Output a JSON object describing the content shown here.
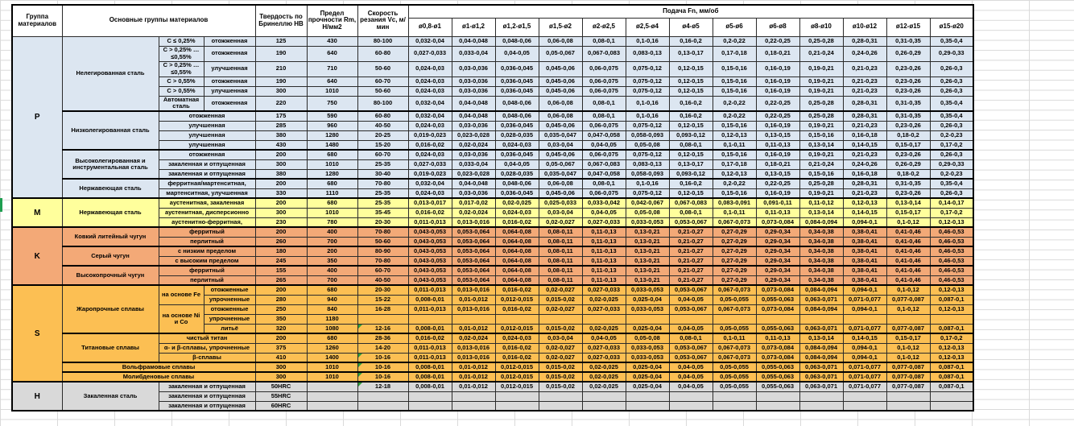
{
  "colors": {
    "group_p": "#dce6f1",
    "group_m": "#ffff9c",
    "group_k": "#f3a977",
    "group_s": "#fcbf53",
    "group_h": "#d9d9d9",
    "comment_marker": "#2e9e3a",
    "grid_line": "#dadada"
  },
  "header": {
    "top": [
      {
        "t": "Группа материалов",
        "rs": 2,
        "n": "header-material-group"
      },
      {
        "t": "Основные группы материалов",
        "rs": 2,
        "cs": 3,
        "n": "header-main-groups"
      },
      {
        "t": "Твердость по Бринеллю HB",
        "rs": 2,
        "n": "header-hardness"
      },
      {
        "t": "Предел прочности Rm, Н/мм2",
        "rs": 2,
        "n": "header-strength"
      },
      {
        "t": "Скорость резания Vc, м/мин",
        "rs": 2,
        "n": "header-cutting-speed"
      },
      {
        "t": "Подача Fn, мм/об",
        "cs": 13,
        "n": "header-feed"
      }
    ],
    "feed_cols": [
      "ø0,8-ø1",
      "ø1-ø1,2",
      "ø1,2-ø1,5",
      "ø1,5-ø2",
      "ø2-ø2,5",
      "ø2,5-ø4",
      "ø4-ø5",
      "ø5-ø6",
      "ø6-ø8",
      "ø8-ø10",
      "ø10-ø12",
      "ø12-ø15",
      "ø15-ø20"
    ]
  },
  "feed_patterns": {
    "A": [
      "0,032-0,04",
      "0,04-0,048",
      "0,048-0,06",
      "0,06-0,08",
      "0,08-0,1",
      "0,1-0,16",
      "0,16-0,2",
      "0,2-0,22",
      "0,22-0,25",
      "0,25-0,28",
      "0,28-0,31",
      "0,31-0,35",
      "0,35-0,4"
    ],
    "B": [
      "0,027-0,033",
      "0,033-0,04",
      "0,04-0,05",
      "0,05-0,067",
      "0,067-0,083",
      "0,083-0,13",
      "0,13-0,17",
      "0,17-0,18",
      "0,18-0,21",
      "0,21-0,24",
      "0,24-0,26",
      "0,26-0,29",
      "0,29-0,33"
    ],
    "C": [
      "0,024-0,03",
      "0,03-0,036",
      "0,036-0,045",
      "0,045-0,06",
      "0,06-0,075",
      "0,075-0,12",
      "0,12-0,15",
      "0,15-0,16",
      "0,16-0,19",
      "0,19-0,21",
      "0,21-0,23",
      "0,23-0,26",
      "0,26-0,3"
    ],
    "D": [
      "0,019-0,023",
      "0,023-0,028",
      "0,028-0,035",
      "0,035-0,047",
      "0,047-0,058",
      "0,058-0,093",
      "0,093-0,12",
      "0,12-0,13",
      "0,13-0,15",
      "0,15-0,16",
      "0,16-0,18",
      "0,18-0,2",
      "0,2-0,23"
    ],
    "E": [
      "0,016-0,02",
      "0,02-0,024",
      "0,024-0,03",
      "0,03-0,04",
      "0,04-0,05",
      "0,05-0,08",
      "0,08-0,1",
      "0,1-0,11",
      "0,11-0,13",
      "0,13-0,14",
      "0,14-0,15",
      "0,15-0,17",
      "0,17-0,2"
    ],
    "F": [
      "0,013-0,017",
      "0,017-0,02",
      "0,02-0,025",
      "0,025-0,033",
      "0,033-0,042",
      "0,042-0,067",
      "0,067-0,083",
      "0,083-0,091",
      "0,091-0,11",
      "0,11-0,12",
      "0,12-0,13",
      "0,13-0,14",
      "0,14-0,17"
    ],
    "G": [
      "0,011-0,013",
      "0,013-0,016",
      "0,016-0,02",
      "0,02-0,027",
      "0,027-0,033",
      "0,033-0,053",
      "0,053-0,067",
      "0,067-0,073",
      "0,073-0,084",
      "0,084-0,094",
      "0,094-0,1",
      "0,1-0,12",
      "0,12-0,13"
    ],
    "H": [
      "0,043-0,053",
      "0,053-0,064",
      "0,064-0,08",
      "0,08-0,11",
      "0,11-0,13",
      "0,13-0,21",
      "0,21-0,27",
      "0,27-0,29",
      "0,29-0,34",
      "0,34-0,38",
      "0,38-0,41",
      "0,41-0,46",
      "0,46-0,53"
    ],
    "I": [
      "0,008-0,01",
      "0,01-0,012",
      "0,012-0,015",
      "0,015-0,02",
      "0,02-0,025",
      "0,025-0,04",
      "0,04-0,05",
      "0,05-0,055",
      "0,055-0,063",
      "0,063-0,071",
      "0,071-0,077",
      "0,077-0,087",
      "0,087-0,1"
    ],
    "X": [
      "",
      "",
      "",
      "",
      "",
      "",
      "",
      "",
      "",
      "",
      "",
      "",
      ""
    ]
  },
  "rows": [
    {
      "bg": "p",
      "cells": [
        {
          "t": "P",
          "rs": 15,
          "c": "gl"
        },
        {
          "t": "Нелегированная сталь",
          "rs": 6
        },
        {
          "t": "C ≤ 0,25%"
        },
        {
          "t": "отожженная"
        },
        {
          "t": "125"
        },
        {
          "t": "430"
        },
        {
          "t": "80-100"
        }
      ],
      "fp": "A"
    },
    {
      "bg": "p",
      "cls": "t19",
      "cells": [
        {
          "t": "C > 0,25% … ≤0,55%"
        },
        {
          "t": "отожженная"
        },
        {
          "t": "190"
        },
        {
          "t": "640"
        },
        {
          "t": "60-80"
        }
      ],
      "fp": "B"
    },
    {
      "bg": "p",
      "cls": "t19",
      "cells": [
        {
          "t": "C > 0,25% … ≤0,55%"
        },
        {
          "t": "улучшенная"
        },
        {
          "t": "210"
        },
        {
          "t": "710"
        },
        {
          "t": "50-60"
        }
      ],
      "fp": "C"
    },
    {
      "bg": "p",
      "cells": [
        {
          "t": "C > 0,55%"
        },
        {
          "t": "отожженная"
        },
        {
          "t": "190"
        },
        {
          "t": "640"
        },
        {
          "t": "60-70"
        }
      ],
      "fp": "C"
    },
    {
      "bg": "p",
      "cells": [
        {
          "t": "C > 0,55%"
        },
        {
          "t": "улучшенная"
        },
        {
          "t": "300"
        },
        {
          "t": "1010"
        },
        {
          "t": "50-60"
        }
      ],
      "fp": "C"
    },
    {
      "bg": "p",
      "cls": "t19",
      "cells": [
        {
          "t": "Автоматная сталь"
        },
        {
          "t": "отожженная"
        },
        {
          "t": "220"
        },
        {
          "t": "750"
        },
        {
          "t": "80-100"
        }
      ],
      "fp": "A"
    },
    {
      "bg": "p",
      "cls": "gtop",
      "cells": [
        {
          "t": "Низколегированная сталь",
          "rs": 4
        },
        {
          "t": "отожженная",
          "cs": 2
        },
        {
          "t": "175"
        },
        {
          "t": "590"
        },
        {
          "t": "60-80"
        }
      ],
      "fp": "A"
    },
    {
      "bg": "p",
      "cells": [
        {
          "t": "улучшенная",
          "cs": 2
        },
        {
          "t": "285"
        },
        {
          "t": "960"
        },
        {
          "t": "40-50"
        }
      ],
      "fp": "C"
    },
    {
      "bg": "p",
      "cells": [
        {
          "t": "улучшенная",
          "cs": 2
        },
        {
          "t": "380"
        },
        {
          "t": "1280"
        },
        {
          "t": "20-25"
        }
      ],
      "fp": "D"
    },
    {
      "bg": "p",
      "cells": [
        {
          "t": "улучшенная",
          "cs": 2
        },
        {
          "t": "430"
        },
        {
          "t": "1480"
        },
        {
          "t": "15-20"
        }
      ],
      "fp": "E"
    },
    {
      "bg": "p",
      "cls": "gtop",
      "cells": [
        {
          "t": "Высоколегированная и инструментальная сталь",
          "rs": 3
        },
        {
          "t": "отожженная",
          "cs": 2
        },
        {
          "t": "200"
        },
        {
          "t": "680"
        },
        {
          "t": "60-70"
        }
      ],
      "fp": "C"
    },
    {
      "bg": "p",
      "cells": [
        {
          "t": "закаленная и отпущенная",
          "cs": 2
        },
        {
          "t": "300"
        },
        {
          "t": "1010"
        },
        {
          "t": "25-35"
        }
      ],
      "fp": "B"
    },
    {
      "bg": "p",
      "cells": [
        {
          "t": "закаленная и отпущенная",
          "cs": 2
        },
        {
          "t": "380"
        },
        {
          "t": "1280"
        },
        {
          "t": "30-40"
        }
      ],
      "fp": "D"
    },
    {
      "bg": "p",
      "cls": "gtop",
      "cells": [
        {
          "t": "Нержавеющая сталь",
          "rs": 2
        },
        {
          "t": "ферритная/мартенситная,",
          "cs": 2
        },
        {
          "t": "200"
        },
        {
          "t": "680"
        },
        {
          "t": "70-80"
        }
      ],
      "fp": "A"
    },
    {
      "bg": "p",
      "cells": [
        {
          "t": "мартенситная, улучшенная",
          "cs": 2
        },
        {
          "t": "330"
        },
        {
          "t": "1110"
        },
        {
          "t": "25-35"
        }
      ],
      "fp": "C"
    },
    {
      "bg": "m",
      "cls": "gtop",
      "cells": [
        {
          "t": "M",
          "rs": 3,
          "c": "gl"
        },
        {
          "t": "Нержавеющая сталь",
          "rs": 3
        },
        {
          "t": "аустенитная, закаленная",
          "cs": 2
        },
        {
          "t": "200"
        },
        {
          "t": "680"
        },
        {
          "t": "25-35"
        }
      ],
      "fp": "F"
    },
    {
      "bg": "m",
      "cells": [
        {
          "t": "аустенитная, дисперсионно",
          "cs": 2
        },
        {
          "t": "300"
        },
        {
          "t": "1010"
        },
        {
          "t": "35-45"
        }
      ],
      "fp": "E"
    },
    {
      "bg": "m",
      "cells": [
        {
          "t": "аустенитно-ферритная,",
          "cs": 2
        },
        {
          "t": "230"
        },
        {
          "t": "780"
        },
        {
          "t": "20-30"
        }
      ],
      "fp": "G"
    },
    {
      "bg": "k",
      "cls": "gtop",
      "cells": [
        {
          "t": "K",
          "rs": 6,
          "c": "gl"
        },
        {
          "t": "Ковкий литейный чугун",
          "rs": 2
        },
        {
          "t": "ферритный",
          "cs": 2
        },
        {
          "t": "200"
        },
        {
          "t": "400"
        },
        {
          "t": "70-80"
        }
      ],
      "fp": "H"
    },
    {
      "bg": "k",
      "cells": [
        {
          "t": "перлитный",
          "cs": 2
        },
        {
          "t": "260"
        },
        {
          "t": "700"
        },
        {
          "t": "50-60"
        }
      ],
      "fp": "H"
    },
    {
      "bg": "k",
      "cls": "gtop",
      "cells": [
        {
          "t": "Серый чугун",
          "rs": 2
        },
        {
          "t": "с низким пределом",
          "cs": 2
        },
        {
          "t": "180"
        },
        {
          "t": "200"
        },
        {
          "t": "80-90"
        }
      ],
      "fp": "H"
    },
    {
      "bg": "k",
      "cells": [
        {
          "t": "с высоким пределом",
          "cs": 2
        },
        {
          "t": "245"
        },
        {
          "t": "350"
        },
        {
          "t": "70-80"
        }
      ],
      "fp": "H"
    },
    {
      "bg": "k",
      "cls": "gtop",
      "cells": [
        {
          "t": "Высокопрочный чугун",
          "rs": 2
        },
        {
          "t": "ферритный",
          "cs": 2
        },
        {
          "t": "155"
        },
        {
          "t": "400"
        },
        {
          "t": "60-70"
        }
      ],
      "fp": "H"
    },
    {
      "bg": "k",
      "cells": [
        {
          "t": "перлитный",
          "cs": 2
        },
        {
          "t": "265"
        },
        {
          "t": "700"
        },
        {
          "t": "40-50"
        }
      ],
      "fp": "H"
    },
    {
      "bg": "s",
      "cls": "gtop",
      "cells": [
        {
          "t": "S",
          "rs": 10,
          "c": "gl"
        },
        {
          "t": "Жаропрочные сплавы",
          "rs": 5
        },
        {
          "t": "на основе Fe",
          "rs": 2
        },
        {
          "t": "отожженные"
        },
        {
          "t": "200"
        },
        {
          "t": "680"
        },
        {
          "t": "20-30"
        }
      ],
      "fp": "G"
    },
    {
      "bg": "s",
      "cells": [
        {
          "t": "упрочненные"
        },
        {
          "t": "280"
        },
        {
          "t": "940"
        },
        {
          "t": "15-22"
        }
      ],
      "fp": "I"
    },
    {
      "bg": "s",
      "cells": [
        {
          "t": "на основе Ni и Co",
          "rs": 3
        },
        {
          "t": "отожженные"
        },
        {
          "t": "250"
        },
        {
          "t": "840"
        },
        {
          "t": "16-28"
        }
      ],
      "fp": "G"
    },
    {
      "bg": "s",
      "cells": [
        {
          "t": "упрочненные"
        },
        {
          "t": "350"
        },
        {
          "t": "1180"
        },
        {
          "t": ""
        }
      ],
      "fp": "X"
    },
    {
      "bg": "s",
      "cells": [
        {
          "t": "литьё"
        },
        {
          "t": "320"
        },
        {
          "t": "1080"
        },
        {
          "t": "12-16",
          "m": 1
        }
      ],
      "fp": "I"
    },
    {
      "bg": "s",
      "cls": "gtop",
      "cells": [
        {
          "t": "Титановые сплавы",
          "rs": 3
        },
        {
          "t": "чистый титан",
          "cs": 2
        },
        {
          "t": "200"
        },
        {
          "t": "680"
        },
        {
          "t": "28-36"
        }
      ],
      "fp": "E"
    },
    {
      "bg": "s",
      "cells": [
        {
          "t": "α- и β-сплавы, упрочненные",
          "cs": 2
        },
        {
          "t": "375"
        },
        {
          "t": "1260"
        },
        {
          "t": "14-20"
        }
      ],
      "fp": "G"
    },
    {
      "bg": "s",
      "cells": [
        {
          "t": "β-сплавы",
          "cs": 2
        },
        {
          "t": "410"
        },
        {
          "t": "1400"
        },
        {
          "t": "10-16",
          "m": 1
        }
      ],
      "fp": "G"
    },
    {
      "bg": "s",
      "cls": "gtop",
      "cells": [
        {
          "t": "Вольфрамовые сплавы",
          "cs": 3
        },
        {
          "t": "300"
        },
        {
          "t": "1010"
        },
        {
          "t": "10-16",
          "m": 1
        }
      ],
      "fp": "I"
    },
    {
      "bg": "s",
      "cls": "gtop",
      "cells": [
        {
          "t": "Молибденовые сплавы",
          "cs": 3
        },
        {
          "t": "300"
        },
        {
          "t": "1010"
        },
        {
          "t": "10-16",
          "m": 1
        }
      ],
      "fp": "I"
    },
    {
      "bg": "h",
      "cls": "gtop",
      "cells": [
        {
          "t": "H",
          "rs": 3,
          "c": "gl"
        },
        {
          "t": "Закаленная сталь",
          "rs": 3
        },
        {
          "t": "закаленная и отпущенная",
          "cs": 2
        },
        {
          "t": "50HRC"
        },
        {
          "t": ""
        },
        {
          "t": "12-18",
          "m": 1
        }
      ],
      "fp": "I"
    },
    {
      "bg": "h",
      "cells": [
        {
          "t": "закаленная и отпущенная",
          "cs": 2
        },
        {
          "t": "55HRC"
        },
        {
          "t": ""
        },
        {
          "t": ""
        }
      ],
      "fp": "X"
    },
    {
      "bg": "h",
      "cells": [
        {
          "t": "закаленная и отпущенная",
          "cs": 2
        },
        {
          "t": "60HRC"
        },
        {
          "t": ""
        },
        {
          "t": ""
        }
      ],
      "fp": "X"
    }
  ]
}
